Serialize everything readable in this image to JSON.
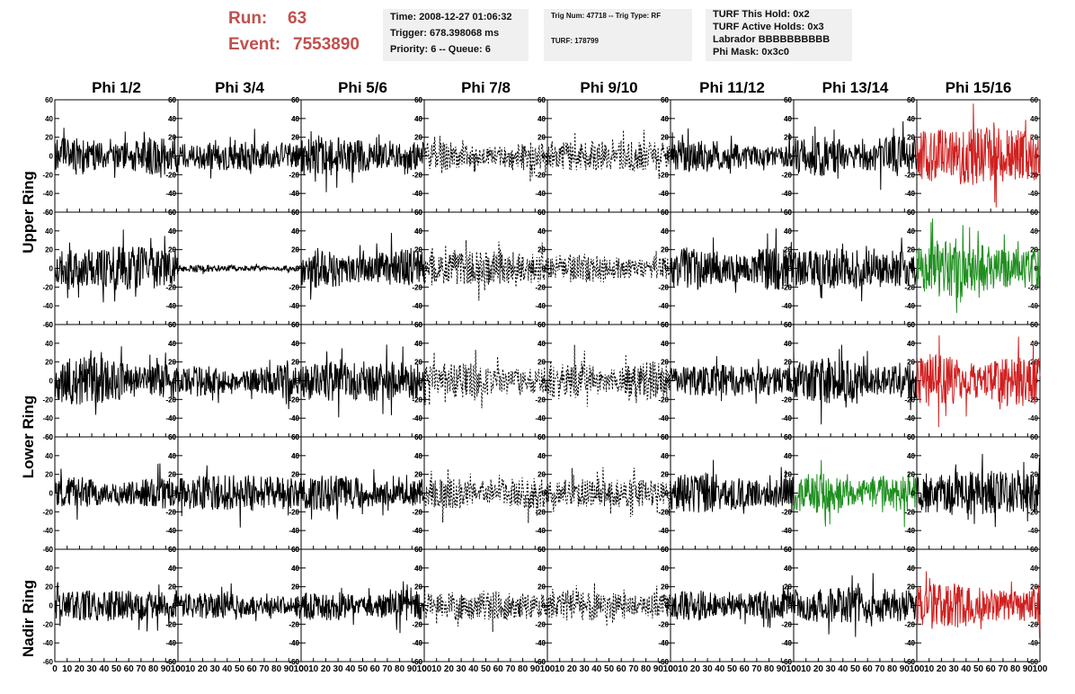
{
  "header": {
    "run_label": "Run:",
    "run_value": "63",
    "event_label": "Event:",
    "event_value": "7553890",
    "time": "Time: 2008-12-27 01:06:32",
    "trigger": "Trigger: 678.398068 ms",
    "priority": "Priority: 6 -- Queue: 6",
    "trig_num": "Trig Num: 47718 -- Trig Type: RF",
    "turf": "TURF: 178799",
    "turf_this_hold": "TURF This Hold: 0x2",
    "turf_active_holds": "TURF Active Holds: 0x3",
    "labrador": "Labrador BBBBBBBBBB",
    "phi_mask": "Phi Mask: 0x3c0"
  },
  "colors": {
    "run_text": "#c0504d",
    "info_bg": "#f0f0f0",
    "trace_black": "#000000",
    "trace_red": "#d02020",
    "trace_green": "#1f8f1f"
  },
  "column_titles": [
    "Phi 1/2",
    "Phi 3/4",
    "Phi 5/6",
    "Phi 7/8",
    "Phi 9/10",
    "Phi 11/12",
    "Phi 13/14",
    "Phi 15/16"
  ],
  "row_titles": [
    "Upper Ring",
    "Lower Ring",
    "Nadir Ring"
  ],
  "chart_data": {
    "type": "line",
    "layout": "grid 5 rows x 8 columns of waveform panels",
    "x_ticks": [
      0,
      10,
      20,
      30,
      40,
      50,
      60,
      70,
      80,
      90,
      100
    ],
    "y_ticks": [
      60,
      40,
      20,
      0,
      -20,
      -40,
      -60
    ],
    "xlim": [
      0,
      100
    ],
    "ylim": [
      -60,
      60
    ],
    "grid": false,
    "waveform": {
      "samples": 260,
      "style_legend": [
        "solid",
        "dashed"
      ],
      "note_hidden": ""
    },
    "panels": [
      {
        "row": 0,
        "col": 0,
        "style": "solid",
        "color": "black",
        "amplitude": 16,
        "seed": 11
      },
      {
        "row": 0,
        "col": 1,
        "style": "solid",
        "color": "black",
        "amplitude": 12,
        "seed": 12
      },
      {
        "row": 0,
        "col": 2,
        "style": "solid",
        "color": "black",
        "amplitude": 16,
        "seed": 13
      },
      {
        "row": 0,
        "col": 3,
        "style": "dashed",
        "color": "black",
        "amplitude": 12,
        "seed": 14
      },
      {
        "row": 0,
        "col": 4,
        "style": "dashed",
        "color": "black",
        "amplitude": 13,
        "seed": 15
      },
      {
        "row": 0,
        "col": 5,
        "style": "solid",
        "color": "black",
        "amplitude": 13,
        "seed": 16
      },
      {
        "row": 0,
        "col": 6,
        "style": "solid",
        "color": "black",
        "amplitude": 17,
        "seed": 17
      },
      {
        "row": 0,
        "col": 7,
        "style": "solid",
        "color": "red",
        "amplitude": 24,
        "seed": 18
      },
      {
        "row": 1,
        "col": 0,
        "style": "solid",
        "color": "black",
        "amplitude": 18,
        "seed": 21
      },
      {
        "row": 1,
        "col": 1,
        "style": "solid",
        "color": "black",
        "amplitude": 3,
        "seed": 22
      },
      {
        "row": 1,
        "col": 2,
        "style": "solid",
        "color": "black",
        "amplitude": 17,
        "seed": 23
      },
      {
        "row": 1,
        "col": 3,
        "style": "dashed",
        "color": "black",
        "amplitude": 14,
        "seed": 24
      },
      {
        "row": 1,
        "col": 4,
        "style": "dashed",
        "color": "black",
        "amplitude": 12,
        "seed": 25
      },
      {
        "row": 1,
        "col": 5,
        "style": "solid",
        "color": "black",
        "amplitude": 18,
        "seed": 26
      },
      {
        "row": 1,
        "col": 6,
        "style": "solid",
        "color": "black",
        "amplitude": 17,
        "seed": 27
      },
      {
        "row": 1,
        "col": 7,
        "style": "solid",
        "color": "green",
        "amplitude": 25,
        "seed": 28
      },
      {
        "row": 2,
        "col": 0,
        "style": "solid",
        "color": "black",
        "amplitude": 20,
        "seed": 31
      },
      {
        "row": 2,
        "col": 1,
        "style": "solid",
        "color": "black",
        "amplitude": 13,
        "seed": 32
      },
      {
        "row": 2,
        "col": 2,
        "style": "solid",
        "color": "black",
        "amplitude": 17,
        "seed": 33
      },
      {
        "row": 2,
        "col": 3,
        "style": "dashed",
        "color": "black",
        "amplitude": 15,
        "seed": 34
      },
      {
        "row": 2,
        "col": 4,
        "style": "dashed",
        "color": "black",
        "amplitude": 16,
        "seed": 35
      },
      {
        "row": 2,
        "col": 5,
        "style": "solid",
        "color": "black",
        "amplitude": 13,
        "seed": 36
      },
      {
        "row": 2,
        "col": 6,
        "style": "solid",
        "color": "black",
        "amplitude": 19,
        "seed": 37
      },
      {
        "row": 2,
        "col": 7,
        "style": "solid",
        "color": "red",
        "amplitude": 22,
        "seed": 38
      },
      {
        "row": 3,
        "col": 0,
        "style": "solid",
        "color": "black",
        "amplitude": 13,
        "seed": 41
      },
      {
        "row": 3,
        "col": 1,
        "style": "solid",
        "color": "black",
        "amplitude": 15,
        "seed": 42
      },
      {
        "row": 3,
        "col": 2,
        "style": "solid",
        "color": "black",
        "amplitude": 15,
        "seed": 43
      },
      {
        "row": 3,
        "col": 3,
        "style": "dashed",
        "color": "black",
        "amplitude": 13,
        "seed": 44
      },
      {
        "row": 3,
        "col": 4,
        "style": "dashed",
        "color": "black",
        "amplitude": 12,
        "seed": 45
      },
      {
        "row": 3,
        "col": 5,
        "style": "solid",
        "color": "black",
        "amplitude": 17,
        "seed": 46
      },
      {
        "row": 3,
        "col": 6,
        "style": "solid",
        "color": "green",
        "amplitude": 17,
        "seed": 47
      },
      {
        "row": 3,
        "col": 7,
        "style": "solid",
        "color": "black",
        "amplitude": 19,
        "seed": 48
      },
      {
        "row": 4,
        "col": 0,
        "style": "solid",
        "color": "black",
        "amplitude": 13,
        "seed": 51
      },
      {
        "row": 4,
        "col": 1,
        "style": "solid",
        "color": "black",
        "amplitude": 11,
        "seed": 52
      },
      {
        "row": 4,
        "col": 2,
        "style": "solid",
        "color": "black",
        "amplitude": 13,
        "seed": 53
      },
      {
        "row": 4,
        "col": 3,
        "style": "dashed",
        "color": "black",
        "amplitude": 12,
        "seed": 54
      },
      {
        "row": 4,
        "col": 4,
        "style": "dashed",
        "color": "black",
        "amplitude": 13,
        "seed": 55
      },
      {
        "row": 4,
        "col": 5,
        "style": "solid",
        "color": "black",
        "amplitude": 13,
        "seed": 56
      },
      {
        "row": 4,
        "col": 6,
        "style": "solid",
        "color": "black",
        "amplitude": 15,
        "seed": 57
      },
      {
        "row": 4,
        "col": 7,
        "style": "solid",
        "color": "red",
        "amplitude": 19,
        "seed": 58
      }
    ]
  }
}
